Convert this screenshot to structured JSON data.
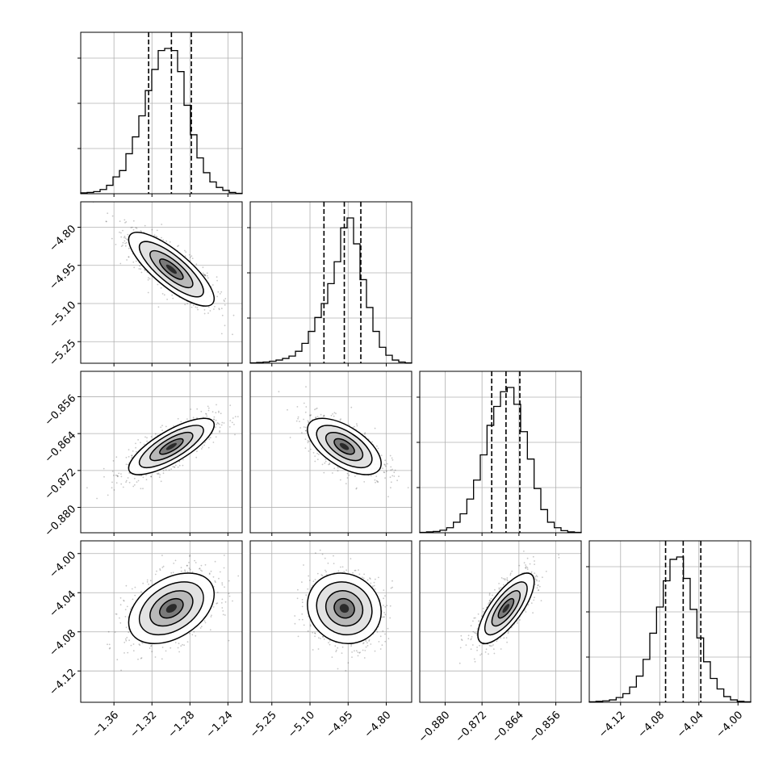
{
  "chart_data": {
    "type": "corner",
    "parameters": 4,
    "axis_ranges": [
      [
        -1.395,
        -1.225
      ],
      [
        -5.335,
        -4.7
      ],
      [
        -0.8855,
        -0.8505
      ],
      [
        -4.152,
        -3.987
      ]
    ],
    "ticks": [
      {
        "values": [
          -1.36,
          -1.32,
          -1.28,
          -1.24
        ],
        "labels": [
          "−1.36",
          "−1.32",
          "−1.28",
          "−1.24"
        ]
      },
      {
        "values": [
          -5.25,
          -5.1,
          -4.95,
          -4.8
        ],
        "labels": [
          "−5.25",
          "−5.10",
          "−4.95",
          "−4.80"
        ]
      },
      {
        "values": [
          -0.88,
          -0.872,
          -0.864,
          -0.856
        ],
        "labels": [
          "−0.880",
          "−0.872",
          "−0.864",
          "−0.856"
        ]
      },
      {
        "values": [
          -4.12,
          -4.08,
          -4.04,
          -4.0
        ],
        "labels": [
          "−4.12",
          "−4.08",
          "−4.04",
          "−4.00"
        ]
      }
    ],
    "quantiles": [
      [
        -1.3235,
        -1.2995,
        -1.2785
      ],
      [
        -5.045,
        -4.965,
        -4.9
      ],
      [
        -0.8699,
        -0.8668,
        -0.8638
      ],
      [
        -4.074,
        -4.056,
        -4.038
      ]
    ],
    "histograms": [
      [
        2,
        3,
        5,
        10,
        20,
        40,
        55,
        95,
        135,
        185,
        245,
        295,
        340,
        345,
        340,
        290,
        210,
        140,
        85,
        50,
        28,
        15,
        8,
        3,
        1
      ],
      [
        1,
        2,
        3,
        5,
        8,
        12,
        18,
        30,
        50,
        80,
        115,
        150,
        200,
        255,
        340,
        365,
        300,
        210,
        140,
        80,
        40,
        20,
        8,
        3,
        1
      ],
      [
        1,
        2,
        3,
        6,
        12,
        25,
        45,
        80,
        125,
        185,
        255,
        300,
        335,
        345,
        305,
        240,
        175,
        105,
        55,
        25,
        12,
        5,
        2,
        1
      ],
      [
        1,
        2,
        3,
        5,
        10,
        18,
        32,
        55,
        90,
        145,
        200,
        255,
        300,
        305,
        260,
        195,
        135,
        85,
        50,
        28,
        12,
        5,
        2,
        1
      ]
    ],
    "correlations": {
      "1-0": -0.8,
      "2-0": 0.77,
      "2-1": -0.6,
      "3-0": 0.4,
      "3-1": -0.1,
      "3-2": 0.75
    },
    "grid": true,
    "colors": {
      "line": "#000000",
      "grid": "#b0b0b0",
      "points": "#000000"
    }
  }
}
